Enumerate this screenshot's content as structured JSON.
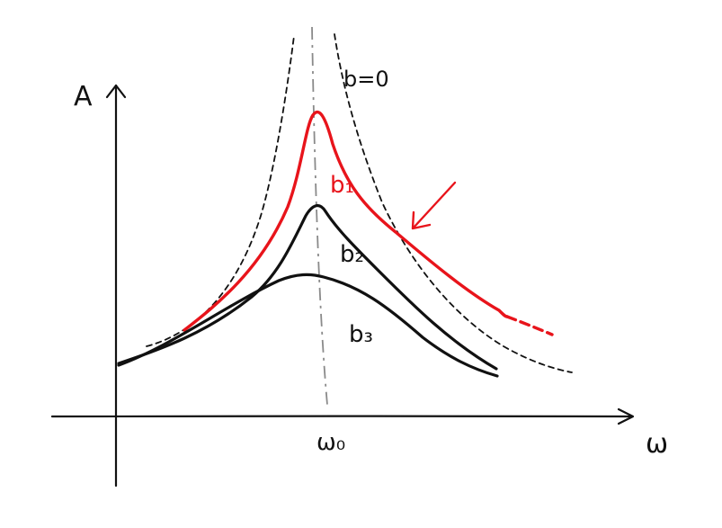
{
  "diagram": {
    "y_axis_label": "A",
    "x_axis_label": "ω",
    "resonance_tick_label": "ω₀",
    "curve_labels": {
      "b0": "b=0",
      "b1": "b₁",
      "b2": "b₂",
      "b3": "b₃"
    },
    "colors": {
      "highlight": "#e8141b",
      "ink": "#111111",
      "guide": "#8a8a8a"
    }
  }
}
